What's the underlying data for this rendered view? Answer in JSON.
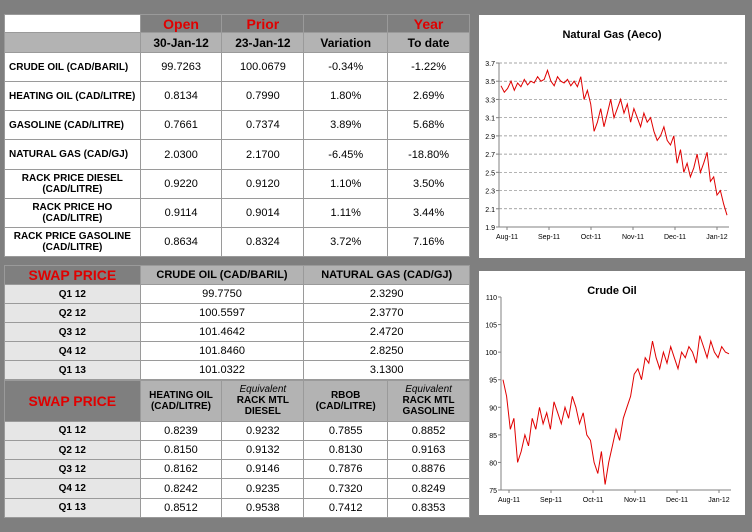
{
  "top_table": {
    "header1": {
      "open": "Open",
      "prior": "Prior",
      "year": "Year"
    },
    "header2": {
      "open_date": "30-Jan-12",
      "prior_date": "23-Jan-12",
      "variation": "Variation",
      "to_date": "To date"
    },
    "rows": [
      {
        "label": "CRUDE OIL (CAD/BARIL)",
        "open": "99.7263",
        "prior": "100.0679",
        "variation": "-0.34%",
        "ytd": "-1.22%"
      },
      {
        "label": "HEATING OIL (CAD/LITRE)",
        "open": "0.8134",
        "prior": "0.7990",
        "variation": "1.80%",
        "ytd": "2.69%"
      },
      {
        "label": "GASOLINE (CAD/LITRE)",
        "open": "0.7661",
        "prior": "0.7374",
        "variation": "3.89%",
        "ytd": "5.68%"
      },
      {
        "label": "NATURAL GAS (CAD/GJ)",
        "open": "2.0300",
        "prior": "2.1700",
        "variation": "-6.45%",
        "ytd": "-18.80%"
      },
      {
        "label": "RACK PRICE DIESEL (CAD/LITRE)",
        "open": "0.9220",
        "prior": "0.9120",
        "variation": "1.10%",
        "ytd": "3.50%"
      },
      {
        "label": "RACK PRICE HO (CAD/LITRE)",
        "open": "0.9114",
        "prior": "0.9014",
        "variation": "1.11%",
        "ytd": "3.44%"
      },
      {
        "label": "RACK PRICE GASOLINE (CAD/LITRE)",
        "open": "0.8634",
        "prior": "0.8324",
        "variation": "3.72%",
        "ytd": "7.16%"
      }
    ]
  },
  "swap1": {
    "title": "SWAP PRICE",
    "col1": "CRUDE OIL (CAD/BARIL)",
    "col2": "NATURAL GAS (CAD/GJ)",
    "rows": [
      {
        "label": "Q1 12",
        "crude": "99.7750",
        "gas": "2.3290"
      },
      {
        "label": "Q2 12",
        "crude": "100.5597",
        "gas": "2.3770"
      },
      {
        "label": "Q3 12",
        "crude": "101.4642",
        "gas": "2.4720"
      },
      {
        "label": "Q4 12",
        "crude": "101.8460",
        "gas": "2.8250"
      },
      {
        "label": "Q1 13",
        "crude": "101.0322",
        "gas": "3.1300"
      }
    ]
  },
  "swap2": {
    "title": "SWAP PRICE",
    "col1": "HEATING OIL (CAD/LITRE)",
    "col2_eq": "Equivalent",
    "col2": "RACK MTL DIESEL",
    "col3": "RBOB (CAD/LITRE)",
    "col4_eq": "Equivalent",
    "col4": "RACK MTL GASOLINE",
    "rows": [
      {
        "label": "Q1 12",
        "ho": "0.8239",
        "diesel": "0.9232",
        "rbob": "0.7855",
        "gasoline": "0.8852"
      },
      {
        "label": "Q2 12",
        "ho": "0.8150",
        "diesel": "0.9132",
        "rbob": "0.8130",
        "gasoline": "0.9163"
      },
      {
        "label": "Q3 12",
        "ho": "0.8162",
        "diesel": "0.9146",
        "rbob": "0.7876",
        "gasoline": "0.8876"
      },
      {
        "label": "Q4 12",
        "ho": "0.8242",
        "diesel": "0.9235",
        "rbob": "0.7320",
        "gasoline": "0.8249"
      },
      {
        "label": "Q1 13",
        "ho": "0.8512",
        "diesel": "0.9538",
        "rbob": "0.7412",
        "gasoline": "0.8353"
      }
    ]
  },
  "chart_data": [
    {
      "type": "line",
      "title": "Natural Gas (Aeco)",
      "xlabel": "",
      "ylabel": "",
      "ylim": [
        1.9,
        3.7
      ],
      "yticks": [
        "1.9",
        "2.1",
        "2.3",
        "2.5",
        "2.7",
        "2.9",
        "3.1",
        "3.3",
        "3.5",
        "3.7"
      ],
      "xticks": [
        "Aug-11",
        "Sep-11",
        "Oct-11",
        "Nov-11",
        "Dec-11",
        "Jan-12"
      ],
      "grid": "horizontal dashed",
      "color": "#e00000",
      "series": [
        {
          "values": [
            3.45,
            3.38,
            3.42,
            3.5,
            3.4,
            3.48,
            3.44,
            3.52,
            3.46,
            3.5,
            3.48,
            3.55,
            3.5,
            3.52,
            3.62,
            3.5,
            3.45,
            3.55,
            3.5,
            3.48,
            3.52,
            3.45,
            3.5,
            3.44,
            3.55,
            3.3,
            3.4,
            3.25,
            2.95,
            3.05,
            3.2,
            3.0,
            3.15,
            3.3,
            3.1,
            3.2,
            3.3,
            3.15,
            3.25,
            3.05,
            3.2,
            3.1,
            3.0,
            3.15,
            3.05,
            3.1,
            2.95,
            2.85,
            2.9,
            3.0,
            2.85,
            2.8,
            2.9,
            2.6,
            2.75,
            2.5,
            2.6,
            2.45,
            2.55,
            2.7,
            2.5,
            2.6,
            2.72,
            2.4,
            2.45,
            2.25,
            2.3,
            2.15,
            2.03
          ]
        }
      ]
    },
    {
      "type": "line",
      "title": "Crude Oil",
      "xlabel": "",
      "ylabel": "",
      "ylim": [
        75,
        110
      ],
      "yticks": [
        "75",
        "80",
        "85",
        "90",
        "95",
        "100",
        "105",
        "110"
      ],
      "xticks": [
        "Aug-11",
        "Sep-11",
        "Oct-11",
        "Nov-11",
        "Dec-11",
        "Jan-12"
      ],
      "grid": "none",
      "color": "#e00000",
      "series": [
        {
          "values": [
            95,
            92,
            86,
            88,
            80,
            82,
            85,
            83,
            88,
            86,
            90,
            87,
            89,
            86,
            91,
            89,
            87,
            90,
            88,
            92,
            90,
            87,
            89,
            85,
            84,
            80,
            78,
            82,
            76,
            80,
            83,
            86,
            84,
            88,
            90,
            92,
            96,
            97,
            95,
            99,
            98,
            102,
            99,
            97,
            100,
            98,
            101,
            99,
            97,
            100,
            99,
            101,
            100,
            98,
            103,
            101,
            99,
            102,
            100,
            99,
            101,
            100,
            99.7
          ]
        }
      ]
    }
  ]
}
